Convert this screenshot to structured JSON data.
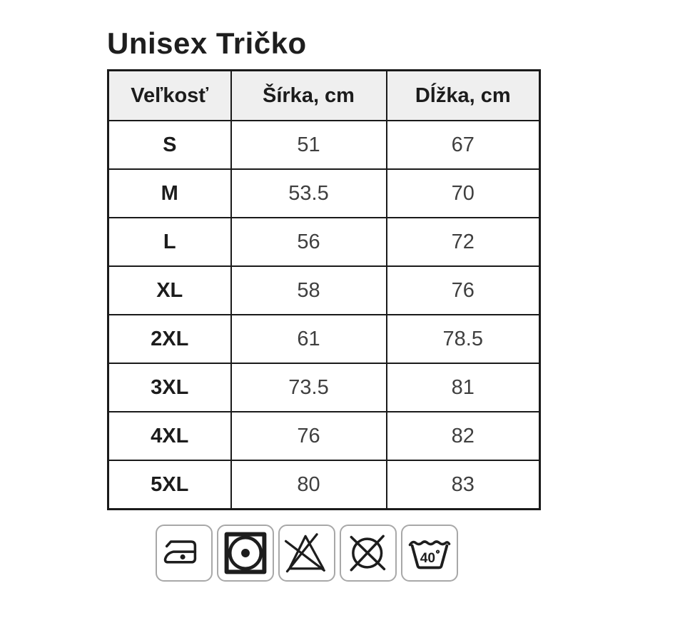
{
  "page": {
    "title": "Unisex Tričko"
  },
  "size_table": {
    "columns": [
      "Veľkosť",
      "Šírka, cm",
      "Dĺžka, cm"
    ],
    "rows": [
      {
        "size": "S",
        "width_cm": "51",
        "length_cm": "67"
      },
      {
        "size": "M",
        "width_cm": "53.5",
        "length_cm": "70"
      },
      {
        "size": "L",
        "width_cm": "56",
        "length_cm": "72"
      },
      {
        "size": "XL",
        "width_cm": "58",
        "length_cm": "76"
      },
      {
        "size": "2XL",
        "width_cm": "61",
        "length_cm": "78.5"
      },
      {
        "size": "3XL",
        "width_cm": "73.5",
        "length_cm": "81"
      },
      {
        "size": "4XL",
        "width_cm": "76",
        "length_cm": "82"
      },
      {
        "size": "5XL",
        "width_cm": "80",
        "length_cm": "83"
      }
    ]
  },
  "care_icons": [
    {
      "icon": "iron-low-icon"
    },
    {
      "icon": "tumble-dry-low-icon"
    },
    {
      "icon": "do-not-bleach-icon"
    },
    {
      "icon": "do-not-dry-clean-icon"
    },
    {
      "icon": "wash-40-icon",
      "temp_label": "40"
    }
  ],
  "colors": {
    "header_bg": "#efefef",
    "table_border": "#1a1a1a",
    "icon_box_border": "#a8a8a8",
    "text_primary": "#1c1c1c",
    "text_values": "#3f3f3f"
  }
}
